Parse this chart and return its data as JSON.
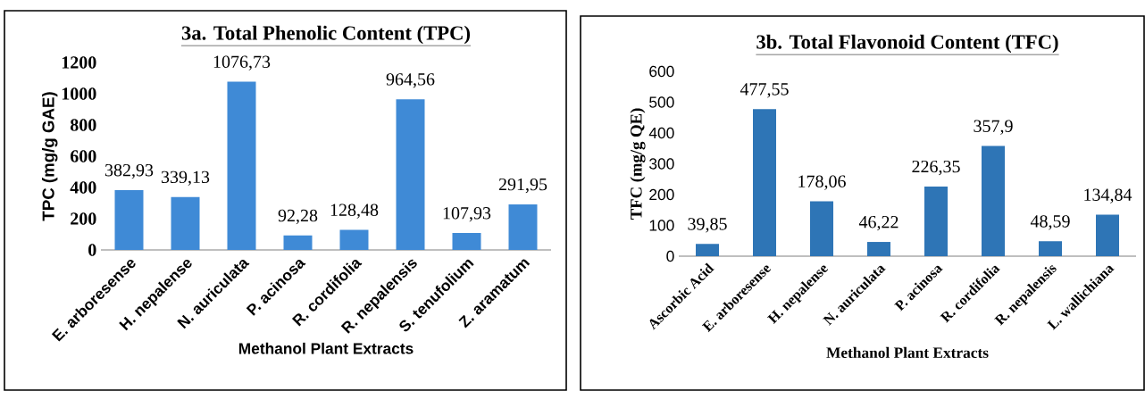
{
  "chart_data": [
    {
      "type": "bar",
      "title": "3a. Total Phenolic Content (TPC)",
      "xlabel": "Methanol Plant Extracts",
      "ylabel": "TPC (mg/g GAE)",
      "categories": [
        "E. arboresense",
        "H. nepalense",
        "N. auriculata",
        "P. acinosa",
        "R. cordifolia",
        "R. nepalensis",
        "S. tenufolium",
        "Z. aramatum"
      ],
      "values": [
        382.93,
        339.13,
        1076.73,
        92.28,
        128.48,
        964.56,
        107.93,
        291.95
      ],
      "value_labels": [
        "382,93",
        "339,13",
        "1076,73",
        "92,28",
        "128,48",
        "964,56",
        "107,93",
        "291,95"
      ],
      "color": "#3f8ad6",
      "ylim": [
        0,
        1200
      ],
      "yticks": [
        0,
        200,
        400,
        600,
        800,
        1000,
        1200
      ]
    },
    {
      "type": "bar",
      "title": "3b. Total Flavonoid Content (TFC)",
      "xlabel": "Methanol Plant Extracts",
      "ylabel": "TFC (mg/g QE)",
      "categories": [
        "Ascorbic Acid",
        "E. arboresense",
        "H. nepalense",
        "N. auriculata",
        "P. acinosa",
        "R. cordifolia",
        "R. nepalensis",
        "L. wallichiana"
      ],
      "values": [
        39.85,
        477.55,
        178.06,
        46.22,
        226.35,
        357.9,
        48.59,
        134.84
      ],
      "value_labels": [
        "39,85",
        "477,55",
        "178,06",
        "46,22",
        "226,35",
        "357,9",
        "48,59",
        "134,84"
      ],
      "color": "#2e75b6",
      "ylim": [
        0,
        600
      ],
      "yticks": [
        0,
        100,
        200,
        300,
        400,
        500,
        600
      ]
    }
  ]
}
